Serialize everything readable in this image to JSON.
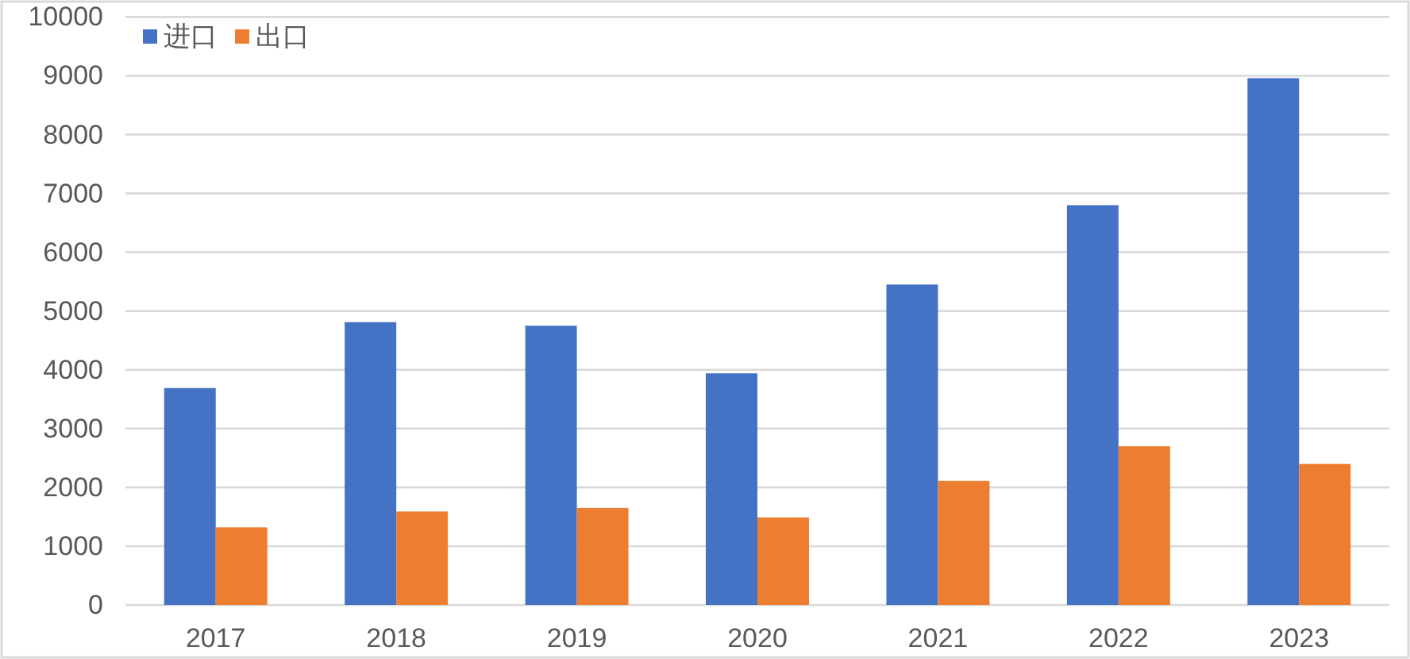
{
  "chart_data": {
    "type": "bar",
    "categories": [
      "2017",
      "2018",
      "2019",
      "2020",
      "2021",
      "2022",
      "2023"
    ],
    "series": [
      {
        "name": "进口",
        "color": "#4472c4",
        "values": [
          3690,
          4810,
          4750,
          3940,
          5450,
          6800,
          8960
        ]
      },
      {
        "name": "出口",
        "color": "#ed7d31",
        "values": [
          1320,
          1590,
          1650,
          1490,
          2110,
          2700,
          2400
        ]
      }
    ],
    "ylim": [
      0,
      10000
    ],
    "yticks": [
      0,
      1000,
      2000,
      3000,
      4000,
      5000,
      6000,
      7000,
      8000,
      9000,
      10000
    ],
    "grid": "y",
    "legend": "top left"
  }
}
